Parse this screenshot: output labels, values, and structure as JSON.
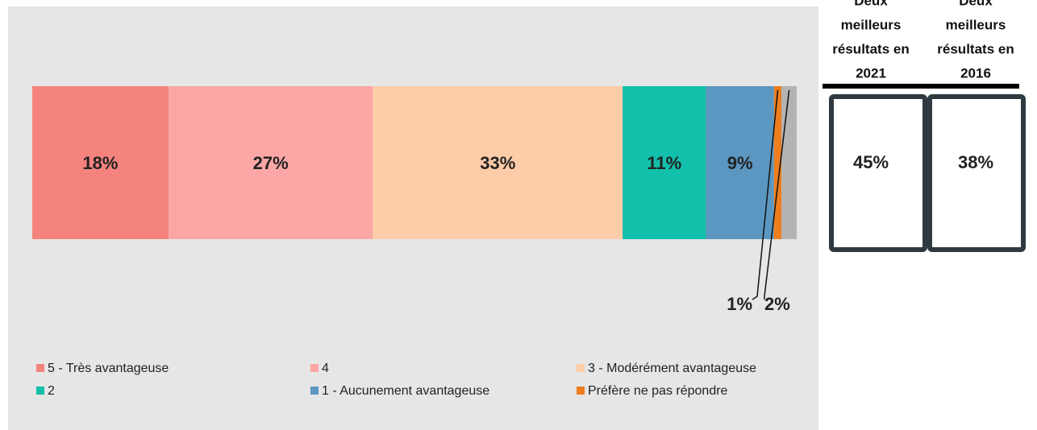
{
  "chart_data": {
    "type": "stacked-bar",
    "xlim": [
      0,
      101
    ],
    "series": [
      {
        "name": "5 - Très avantageuse",
        "color": "#f4837d",
        "values": [
          18
        ],
        "value_labels": [
          "18%"
        ]
      },
      {
        "name": "4",
        "color": "#fba7a6",
        "values": [
          27
        ],
        "value_labels": [
          "27%"
        ]
      },
      {
        "name": "3 - Modérément avantageuse",
        "color": "#fdcca8",
        "values": [
          33
        ],
        "value_labels": [
          "33%"
        ]
      },
      {
        "name": "2",
        "color": "#12bfaa",
        "values": [
          11
        ],
        "value_labels": [
          "11%"
        ]
      },
      {
        "name": "1 - Aucunement avantageuse",
        "color": "#5b97c0",
        "values": [
          9
        ],
        "value_labels": [
          "9%"
        ]
      },
      {
        "name": "Préfère ne pas répondre",
        "color": "#ee7d1e",
        "values": [
          1
        ],
        "value_labels": [
          "1%"
        ]
      },
      {
        "name": null,
        "color": "#b3b3b3",
        "values": [
          2
        ],
        "value_labels": [
          "2%"
        ]
      }
    ],
    "summary": [
      {
        "title_lines": [
          "Deux",
          "meilleurs",
          "résultats en",
          "2021"
        ],
        "value": 45,
        "label": "45%"
      },
      {
        "title_lines": [
          "Deux",
          "meilleurs",
          "résultats en",
          "2016"
        ],
        "value": 38,
        "label": "38%"
      }
    ]
  }
}
